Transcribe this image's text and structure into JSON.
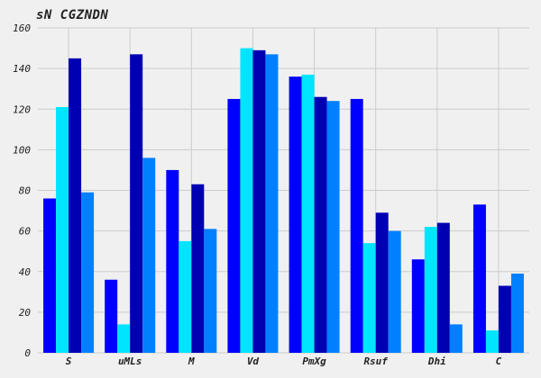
{
  "chart_data": {
    "type": "bar",
    "title": "sN CGZNDN",
    "xlabel": "",
    "ylabel": "",
    "ylim": [
      0,
      160
    ],
    "yticks": [
      0,
      20,
      40,
      60,
      80,
      100,
      120,
      140,
      160
    ],
    "grid": true,
    "legend": "none",
    "categories": [
      "S",
      "uMLs",
      "M",
      "Vd",
      "PmXg",
      "Rsuf",
      "Dhi",
      "C"
    ],
    "series": [
      {
        "color": "#0000ff",
        "values": [
          76,
          36,
          90,
          125,
          136,
          125,
          46,
          73
        ]
      },
      {
        "color": "#00e5ff",
        "values": [
          121,
          14,
          55,
          150,
          137,
          54,
          62,
          11
        ]
      },
      {
        "color": "#0000b3",
        "values": [
          145,
          147,
          83,
          149,
          126,
          69,
          64,
          33
        ]
      },
      {
        "color": "#0080ff",
        "values": [
          79,
          96,
          61,
          147,
          124,
          60,
          14,
          39
        ]
      }
    ]
  }
}
